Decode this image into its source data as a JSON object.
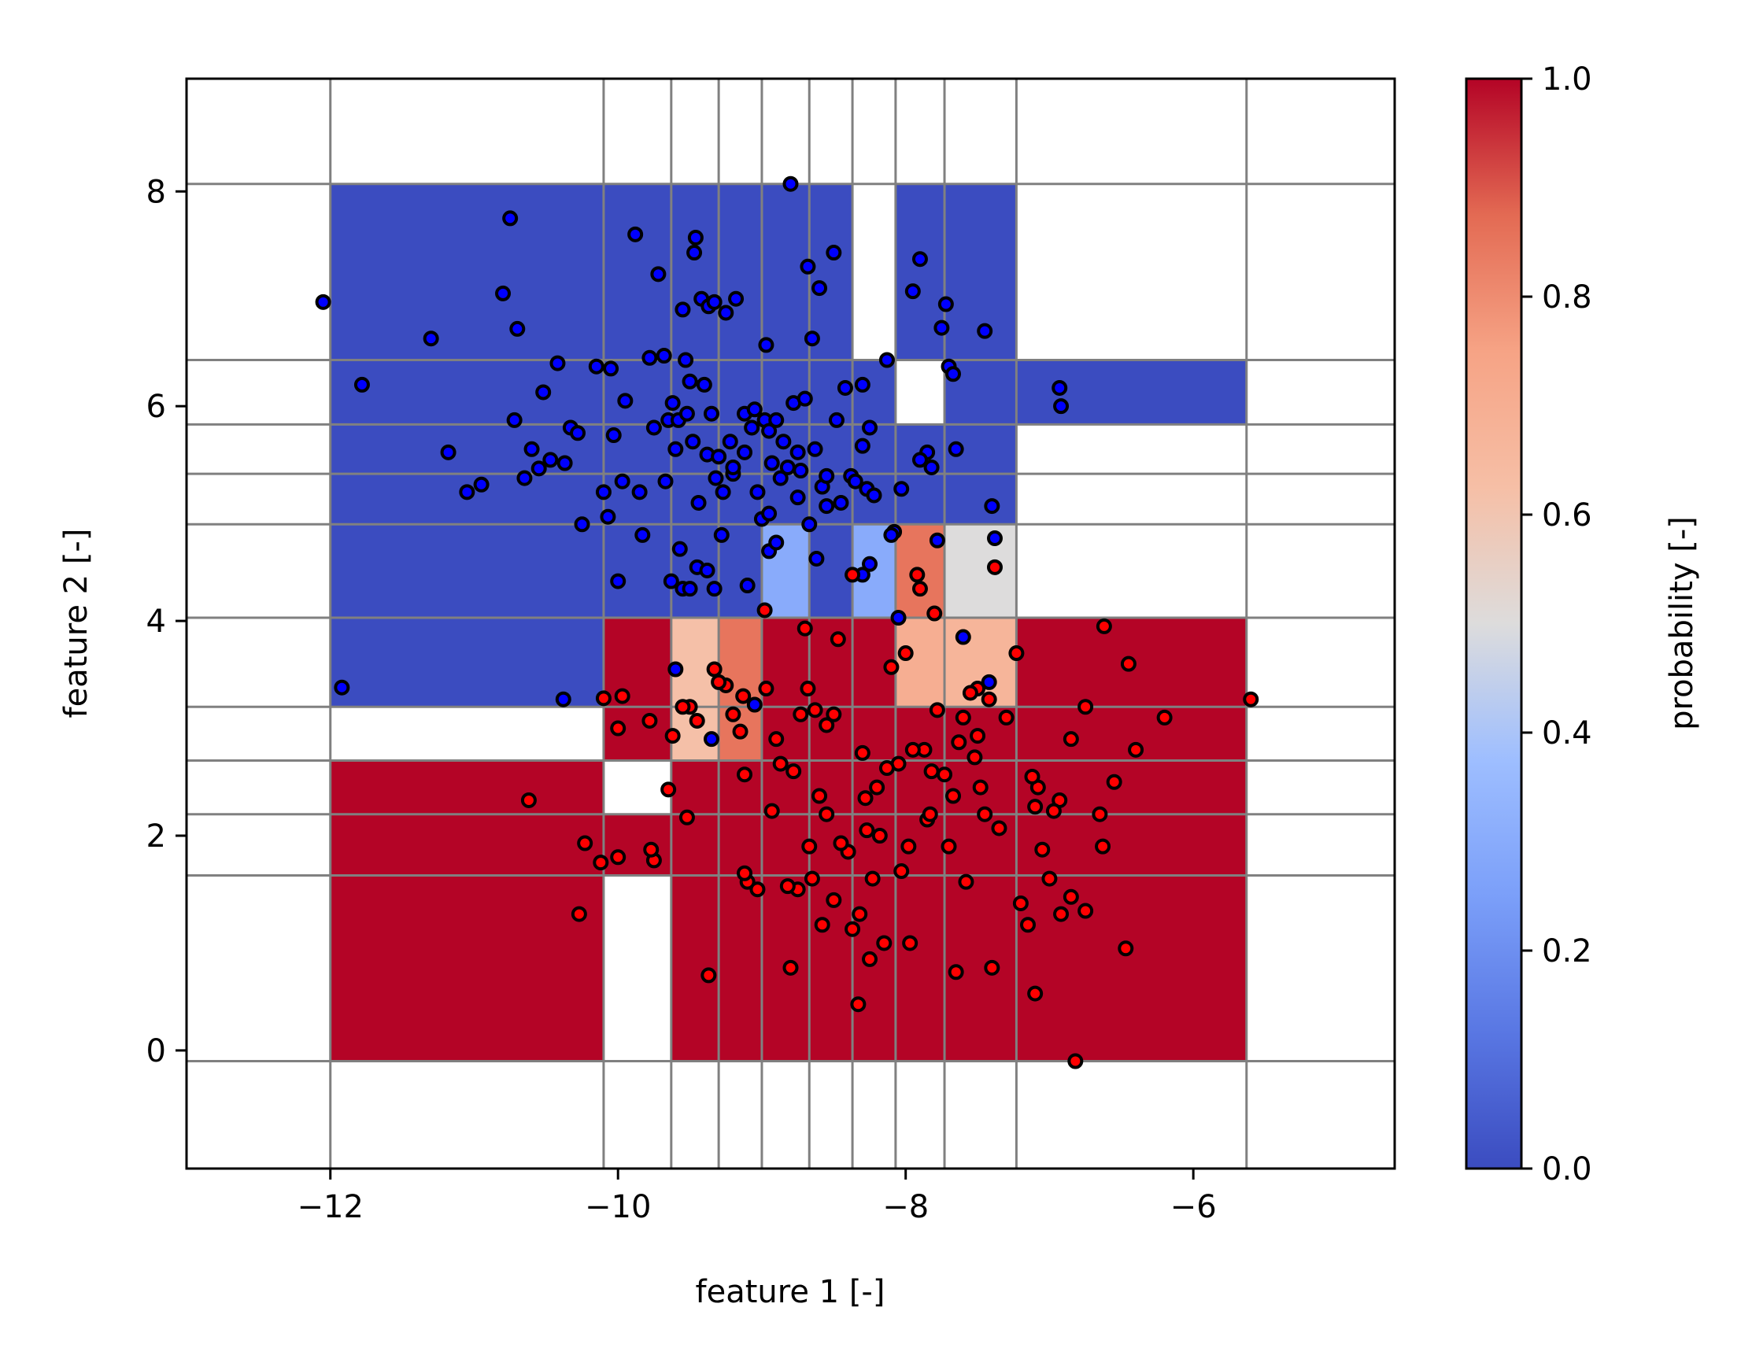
{
  "chart_data": {
    "type": "heatmap",
    "title": "",
    "xlabel": "feature 1 [-]",
    "ylabel": "feature 2 [-]",
    "colorbar_label": "probability [-]",
    "colormap": "coolwarm",
    "xlim": [
      -13,
      -4.6
    ],
    "ylim": [
      -1.1,
      9.05
    ],
    "xticks": [
      -12,
      -10,
      -8,
      -6
    ],
    "xtick_labels": [
      "−12",
      "−10",
      "−8",
      "−6"
    ],
    "yticks": [
      0,
      2,
      4,
      6,
      8
    ],
    "ytick_labels": [
      "0",
      "2",
      "4",
      "6",
      "8"
    ],
    "colorbar_ticks": [
      0.0,
      0.2,
      0.4,
      0.6,
      0.8,
      1.0
    ],
    "colorbar_tick_labels": [
      "0.0",
      "0.2",
      "0.4",
      "0.6",
      "0.8",
      "1.0"
    ],
    "grid_color": "#808080",
    "x_edges": [
      -12.0,
      -10.1,
      -9.63,
      -9.3,
      -9.0,
      -8.67,
      -8.37,
      -8.07,
      -7.73,
      -7.23,
      -5.63
    ],
    "y_edges": [
      -0.1,
      1.63,
      2.2,
      2.7,
      3.2,
      4.03,
      4.9,
      5.37,
      5.83,
      6.43,
      8.07
    ],
    "grid": [
      [
        1,
        null,
        1,
        1,
        1,
        1,
        1,
        1,
        1,
        1
      ],
      [
        1,
        1,
        1,
        1,
        1,
        1,
        1,
        1,
        1,
        1
      ],
      [
        1,
        null,
        1,
        1,
        1,
        1,
        1,
        1,
        1,
        1
      ],
      [
        null,
        1,
        0.62,
        0.85,
        1,
        1,
        1,
        1,
        1,
        1
      ],
      [
        0,
        1,
        0.62,
        0.85,
        1,
        1,
        1,
        0.7,
        0.67,
        1
      ],
      [
        0,
        0,
        0,
        0,
        0.3,
        0,
        0.3,
        0.85,
        0.5,
        null
      ],
      [
        0,
        0,
        0,
        0,
        0,
        0,
        0,
        0,
        0,
        null
      ],
      [
        0,
        0,
        0,
        0,
        0,
        0,
        0,
        0,
        0,
        null
      ],
      [
        0,
        0,
        0,
        0,
        0,
        0,
        0,
        null,
        0,
        0
      ],
      [
        0,
        0,
        0,
        0,
        0,
        0,
        null,
        0,
        0,
        null
      ]
    ],
    "class0_points": [
      [
        -12.05,
        6.97
      ],
      [
        -11.78,
        6.2
      ],
      [
        -11.3,
        6.63
      ],
      [
        -11.18,
        5.57
      ],
      [
        -11.05,
        5.2
      ],
      [
        -10.95,
        5.27
      ],
      [
        -10.8,
        7.05
      ],
      [
        -10.75,
        7.75
      ],
      [
        -10.72,
        5.87
      ],
      [
        -10.7,
        6.72
      ],
      [
        -10.65,
        5.33
      ],
      [
        -10.6,
        5.6
      ],
      [
        -10.55,
        5.42
      ],
      [
        -10.52,
        6.13
      ],
      [
        -10.47,
        5.5
      ],
      [
        -10.42,
        6.4
      ],
      [
        -10.37,
        5.47
      ],
      [
        -10.33,
        5.8
      ],
      [
        -10.28,
        5.75
      ],
      [
        -10.25,
        4.9
      ],
      [
        -10.15,
        6.37
      ],
      [
        -10.1,
        5.2
      ],
      [
        -10.07,
        4.97
      ],
      [
        -10.05,
        6.35
      ],
      [
        -10.03,
        5.73
      ],
      [
        -10.0,
        4.37
      ],
      [
        -9.97,
        5.3
      ],
      [
        -9.95,
        6.05
      ],
      [
        -9.88,
        7.6
      ],
      [
        -9.85,
        5.2
      ],
      [
        -9.83,
        4.8
      ],
      [
        -9.78,
        6.45
      ],
      [
        -9.75,
        5.8
      ],
      [
        -9.72,
        7.23
      ],
      [
        -9.68,
        6.47
      ],
      [
        -9.67,
        5.3
      ],
      [
        -9.65,
        5.87
      ],
      [
        -9.62,
        6.03
      ],
      [
        -9.58,
        5.87
      ],
      [
        -9.55,
        6.9
      ],
      [
        -9.53,
        6.43
      ],
      [
        -9.52,
        5.93
      ],
      [
        -9.5,
        6.23
      ],
      [
        -9.48,
        5.67
      ],
      [
        -9.47,
        7.43
      ],
      [
        -9.46,
        7.57
      ],
      [
        -9.44,
        5.1
      ],
      [
        -9.42,
        7.0
      ],
      [
        -9.4,
        6.2
      ],
      [
        -9.38,
        5.55
      ],
      [
        -9.37,
        6.93
      ],
      [
        -9.35,
        5.93
      ],
      [
        -9.33,
        6.97
      ],
      [
        -9.32,
        5.33
      ],
      [
        -9.3,
        5.53
      ],
      [
        -9.28,
        4.8
      ],
      [
        -9.27,
        5.2
      ],
      [
        -9.25,
        6.87
      ],
      [
        -9.22,
        5.67
      ],
      [
        -9.2,
        5.37
      ],
      [
        -9.18,
        7.0
      ],
      [
        -9.12,
        5.93
      ],
      [
        -9.07,
        5.8
      ],
      [
        -9.05,
        5.97
      ],
      [
        -9.03,
        5.2
      ],
      [
        -9.0,
        4.95
      ],
      [
        -8.98,
        5.87
      ],
      [
        -8.97,
        6.57
      ],
      [
        -8.95,
        5.77
      ],
      [
        -8.93,
        5.47
      ],
      [
        -8.9,
        5.87
      ],
      [
        -8.87,
        5.33
      ],
      [
        -8.85,
        5.67
      ],
      [
        -8.82,
        5.43
      ],
      [
        -8.8,
        8.07
      ],
      [
        -8.78,
        6.03
      ],
      [
        -8.75,
        5.57
      ],
      [
        -8.73,
        5.4
      ],
      [
        -8.7,
        6.07
      ],
      [
        -8.68,
        7.3
      ],
      [
        -8.67,
        4.9
      ],
      [
        -8.65,
        6.63
      ],
      [
        -8.63,
        5.6
      ],
      [
        -8.6,
        7.1
      ],
      [
        -8.58,
        5.25
      ],
      [
        -8.55,
        5.07
      ],
      [
        -8.5,
        7.43
      ],
      [
        -8.48,
        5.87
      ],
      [
        -8.45,
        5.1
      ],
      [
        -8.42,
        6.17
      ],
      [
        -8.38,
        5.35
      ],
      [
        -8.35,
        5.3
      ],
      [
        -8.3,
        6.2
      ],
      [
        -8.27,
        5.23
      ],
      [
        -8.25,
        5.8
      ],
      [
        -8.22,
        5.17
      ],
      [
        -8.13,
        6.43
      ],
      [
        -8.08,
        4.83
      ],
      [
        -8.05,
        4.03
      ],
      [
        -8.03,
        5.23
      ],
      [
        -7.95,
        7.07
      ],
      [
        -7.9,
        7.37
      ],
      [
        -7.85,
        5.57
      ],
      [
        -7.82,
        5.43
      ],
      [
        -7.78,
        4.75
      ],
      [
        -7.75,
        6.73
      ],
      [
        -7.72,
        6.95
      ],
      [
        -7.7,
        6.37
      ],
      [
        -7.67,
        6.3
      ],
      [
        -7.65,
        5.6
      ],
      [
        -7.45,
        6.7
      ],
      [
        -7.42,
        3.43
      ],
      [
        -7.4,
        5.07
      ],
      [
        -7.38,
        4.77
      ],
      [
        -6.93,
        6.17
      ],
      [
        -6.92,
        6.0
      ],
      [
        -11.92,
        3.38
      ],
      [
        -10.38,
        3.27
      ],
      [
        -9.6,
        3.55
      ],
      [
        -9.35,
        2.9
      ],
      [
        -9.05,
        3.22
      ],
      [
        -8.95,
        4.65
      ],
      [
        -8.9,
        4.73
      ],
      [
        -8.62,
        4.58
      ],
      [
        -8.3,
        4.43
      ],
      [
        -8.25,
        4.53
      ],
      [
        -8.1,
        4.8
      ],
      [
        -7.6,
        3.85
      ],
      [
        -9.63,
        4.37
      ],
      [
        -9.55,
        4.3
      ],
      [
        -9.5,
        4.3
      ],
      [
        -9.45,
        4.5
      ],
      [
        -9.33,
        4.3
      ],
      [
        -9.1,
        4.33
      ],
      [
        -9.12,
        5.57
      ],
      [
        -9.2,
        5.43
      ],
      [
        -8.95,
        5.0
      ],
      [
        -9.57,
        4.67
      ],
      [
        -9.6,
        5.6
      ],
      [
        -9.38,
        4.47
      ],
      [
        -8.3,
        5.63
      ],
      [
        -8.75,
        5.15
      ],
      [
        -8.55,
        5.35
      ],
      [
        -7.9,
        5.5
      ]
    ],
    "class1_points": [
      [
        -5.6,
        3.27
      ],
      [
        -6.2,
        3.1
      ],
      [
        -6.4,
        2.8
      ],
      [
        -6.45,
        3.6
      ],
      [
        -6.55,
        2.5
      ],
      [
        -6.62,
        3.95
      ],
      [
        -6.63,
        1.9
      ],
      [
        -6.65,
        2.2
      ],
      [
        -6.75,
        3.2
      ],
      [
        -6.75,
        1.3
      ],
      [
        -6.85,
        2.9
      ],
      [
        -6.85,
        1.43
      ],
      [
        -6.92,
        1.27
      ],
      [
        -6.93,
        2.33
      ],
      [
        -6.97,
        2.23
      ],
      [
        -7.0,
        1.6
      ],
      [
        -7.05,
        1.87
      ],
      [
        -7.08,
        2.45
      ],
      [
        -7.1,
        2.27
      ],
      [
        -7.1,
        0.53
      ],
      [
        -7.12,
        2.55
      ],
      [
        -7.15,
        1.17
      ],
      [
        -7.2,
        1.37
      ],
      [
        -7.23,
        3.7
      ],
      [
        -7.3,
        3.1
      ],
      [
        -7.35,
        2.07
      ],
      [
        -7.38,
        4.5
      ],
      [
        -7.4,
        0.77
      ],
      [
        -7.42,
        3.27
      ],
      [
        -7.45,
        2.2
      ],
      [
        -7.48,
        2.45
      ],
      [
        -7.5,
        3.37
      ],
      [
        -7.5,
        2.93
      ],
      [
        -7.52,
        2.73
      ],
      [
        -7.55,
        3.33
      ],
      [
        -7.58,
        1.57
      ],
      [
        -7.6,
        3.1
      ],
      [
        -7.63,
        2.87
      ],
      [
        -7.65,
        0.73
      ],
      [
        -7.67,
        2.37
      ],
      [
        -7.7,
        1.9
      ],
      [
        -7.73,
        2.57
      ],
      [
        -7.78,
        3.17
      ],
      [
        -7.8,
        4.07
      ],
      [
        -7.82,
        2.6
      ],
      [
        -7.85,
        2.15
      ],
      [
        -7.87,
        2.8
      ],
      [
        -7.9,
        4.3
      ],
      [
        -7.92,
        4.43
      ],
      [
        -7.95,
        2.8
      ],
      [
        -7.97,
        1.0
      ],
      [
        -7.98,
        1.9
      ],
      [
        -8.0,
        3.7
      ],
      [
        -8.03,
        1.67
      ],
      [
        -8.05,
        2.67
      ],
      [
        -8.1,
        3.57
      ],
      [
        -8.13,
        2.63
      ],
      [
        -8.15,
        1.0
      ],
      [
        -8.18,
        2.0
      ],
      [
        -8.2,
        2.45
      ],
      [
        -8.23,
        1.6
      ],
      [
        -8.25,
        0.85
      ],
      [
        -8.27,
        2.05
      ],
      [
        -8.28,
        2.35
      ],
      [
        -8.3,
        2.77
      ],
      [
        -8.32,
        1.27
      ],
      [
        -8.33,
        0.43
      ],
      [
        -8.37,
        4.43
      ],
      [
        -8.4,
        1.85
      ],
      [
        -8.45,
        1.93
      ],
      [
        -8.47,
        3.83
      ],
      [
        -8.5,
        3.13
      ],
      [
        -8.5,
        1.4
      ],
      [
        -8.55,
        2.2
      ],
      [
        -8.55,
        3.03
      ],
      [
        -8.58,
        1.17
      ],
      [
        -8.6,
        2.37
      ],
      [
        -8.63,
        3.17
      ],
      [
        -8.65,
        1.6
      ],
      [
        -8.67,
        1.9
      ],
      [
        -8.68,
        3.37
      ],
      [
        -8.7,
        3.93
      ],
      [
        -8.73,
        3.13
      ],
      [
        -8.75,
        1.5
      ],
      [
        -8.78,
        2.6
      ],
      [
        -8.8,
        0.77
      ],
      [
        -8.82,
        1.53
      ],
      [
        -8.87,
        2.67
      ],
      [
        -8.9,
        2.9
      ],
      [
        -8.93,
        2.23
      ],
      [
        -8.97,
        3.37
      ],
      [
        -8.98,
        4.1
      ],
      [
        -9.03,
        1.5
      ],
      [
        -9.1,
        1.57
      ],
      [
        -9.12,
        2.57
      ],
      [
        -9.13,
        3.3
      ],
      [
        -9.15,
        2.97
      ],
      [
        -9.2,
        3.13
      ],
      [
        -9.25,
        3.4
      ],
      [
        -9.3,
        3.43
      ],
      [
        -9.33,
        3.55
      ],
      [
        -9.37,
        0.7
      ],
      [
        -9.45,
        3.07
      ],
      [
        -9.5,
        3.2
      ],
      [
        -9.52,
        2.17
      ],
      [
        -9.55,
        3.2
      ],
      [
        -9.62,
        2.93
      ],
      [
        -9.65,
        2.43
      ],
      [
        -9.75,
        1.77
      ],
      [
        -9.77,
        1.87
      ],
      [
        -9.78,
        3.07
      ],
      [
        -9.97,
        3.3
      ],
      [
        -10.0,
        3.0
      ],
      [
        -10.0,
        1.8
      ],
      [
        -10.1,
        3.28
      ],
      [
        -10.12,
        1.75
      ],
      [
        -10.23,
        1.93
      ],
      [
        -10.27,
        1.27
      ],
      [
        -10.62,
        2.33
      ],
      [
        -6.47,
        0.95
      ],
      [
        -6.82,
        -0.1
      ],
      [
        -8.37,
        1.13
      ],
      [
        -7.83,
        2.2
      ],
      [
        -9.12,
        1.65
      ]
    ]
  }
}
